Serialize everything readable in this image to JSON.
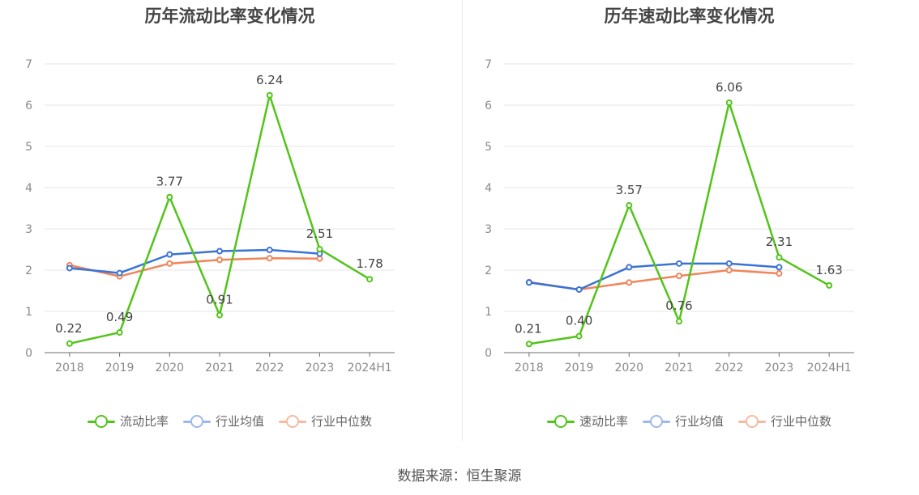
{
  "source": "数据来源：恒生聚源",
  "chart_data": [
    {
      "type": "line",
      "title": "历年流动比率变化情况",
      "categories": [
        "2018",
        "2019",
        "2020",
        "2021",
        "2022",
        "2023",
        "2024H1"
      ],
      "y_ticks": [
        "0",
        "1",
        "2",
        "3",
        "4",
        "5",
        "6",
        "7"
      ],
      "ylim": [
        0,
        7
      ],
      "series": [
        {
          "name": "流动比率",
          "color": "#52c41a",
          "values": [
            0.22,
            0.49,
            3.77,
            0.91,
            6.24,
            2.51,
            1.78
          ],
          "labels": [
            "0.22",
            "0.49",
            "3.77",
            "0.91",
            "6.24",
            "2.51",
            "1.78"
          ]
        },
        {
          "name": "行业均值",
          "color": "#3a73d6",
          "values": [
            2.05,
            1.93,
            2.38,
            2.46,
            2.49,
            2.4,
            null
          ]
        },
        {
          "name": "行业中位数",
          "color": "#f0855a",
          "values": [
            2.12,
            1.85,
            2.16,
            2.25,
            2.29,
            2.28,
            null
          ]
        }
      ]
    },
    {
      "type": "line",
      "title": "历年速动比率变化情况",
      "categories": [
        "2018",
        "2019",
        "2020",
        "2021",
        "2022",
        "2023",
        "2024H1"
      ],
      "y_ticks": [
        "0",
        "1",
        "2",
        "3",
        "4",
        "5",
        "6",
        "7"
      ],
      "ylim": [
        0,
        7
      ],
      "series": [
        {
          "name": "速动比率",
          "color": "#52c41a",
          "values": [
            0.21,
            0.4,
            3.57,
            0.76,
            6.06,
            2.31,
            1.63
          ],
          "labels": [
            "0.21",
            "0.40",
            "3.57",
            "0.76",
            "6.06",
            "2.31",
            "1.63"
          ]
        },
        {
          "name": "行业均值",
          "color": "#3a73d6",
          "values": [
            1.7,
            1.53,
            2.07,
            2.16,
            2.16,
            2.07,
            null
          ]
        },
        {
          "name": "行业中位数",
          "color": "#f0855a",
          "values": [
            1.71,
            1.53,
            1.7,
            1.86,
            2.0,
            1.92,
            null
          ]
        }
      ]
    }
  ]
}
